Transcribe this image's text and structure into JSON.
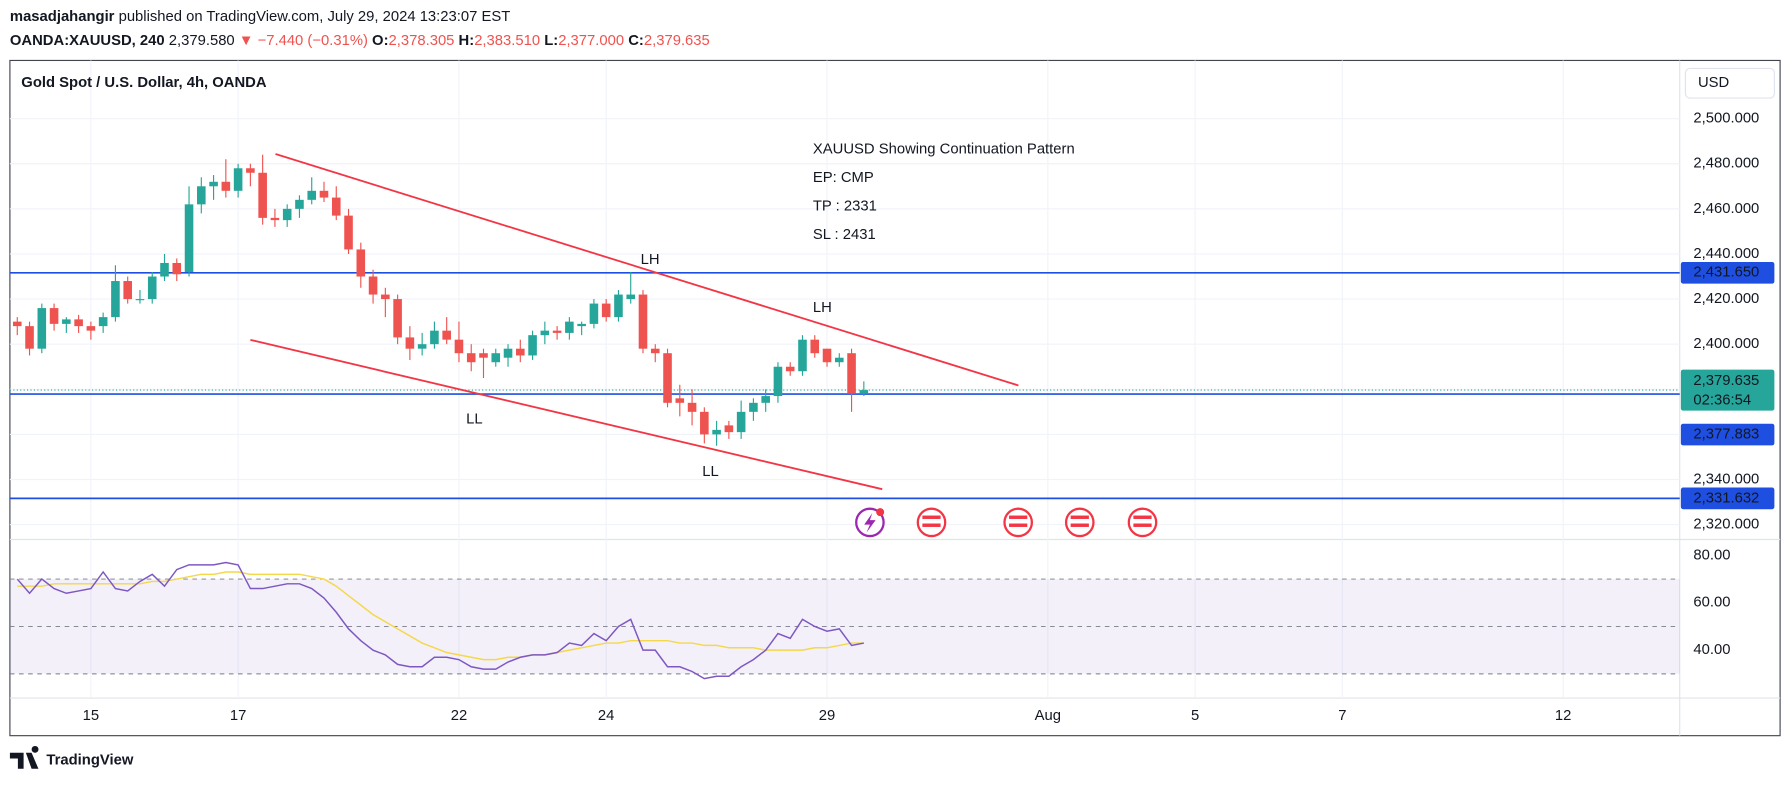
{
  "header": {
    "author": "masadjahangir",
    "published": "published on TradingView.com, July 29, 2024 13:23:07 EST",
    "symbol": "OANDA:XAUUSD, 240",
    "price": "2,379.580",
    "change": "▼ −7.440 (−0.31%)",
    "ohlc": [
      {
        "key": "O:",
        "value": "2,378.305"
      },
      {
        "key": "H:",
        "value": "2,383.510"
      },
      {
        "key": "L:",
        "value": "2,377.000"
      },
      {
        "key": "C:",
        "value": "2,379.635"
      }
    ],
    "legend": "Gold Spot / U.S. Dollar, 4h, OANDA",
    "currency": "USD",
    "brand": "TradingView"
  },
  "chart_data": {
    "type": "candlestick",
    "x": [
      0,
      1,
      2,
      3,
      4,
      5,
      6,
      7,
      8,
      9,
      10,
      11,
      12,
      13,
      14,
      15,
      16,
      17,
      18,
      19,
      20,
      21,
      22,
      23,
      24,
      25,
      26,
      27,
      28,
      29,
      30,
      31,
      32,
      33,
      34,
      35,
      36,
      37,
      38,
      39,
      40,
      41,
      42,
      43,
      44,
      45,
      46,
      47,
      48,
      49,
      50,
      51,
      52,
      53,
      54,
      55,
      56,
      57,
      58,
      59,
      60,
      61,
      62,
      63,
      64,
      65,
      66,
      67,
      68,
      69
    ],
    "open": [
      2410,
      2408,
      2398,
      2416,
      2409,
      2411,
      2408,
      2408,
      2412,
      2428,
      2420,
      2420,
      2430,
      2436,
      2432,
      2462,
      2470,
      2472,
      2468,
      2478,
      2476,
      2456,
      2455,
      2460,
      2464,
      2468,
      2465,
      2457,
      2442,
      2430,
      2422,
      2420,
      2403,
      2398,
      2400,
      2406,
      2402,
      2396,
      2396,
      2392,
      2394,
      2398,
      2395,
      2404,
      2406,
      2405,
      2408,
      2409,
      2418,
      2412,
      2420,
      2422,
      2398,
      2396,
      2376,
      2374,
      2370,
      2360,
      2364,
      2361,
      2370,
      2374,
      2377,
      2390,
      2388,
      2402,
      2398,
      2392,
      2396,
      2378.305
    ],
    "high": [
      2412,
      2410,
      2418,
      2418,
      2412,
      2413,
      2410,
      2414,
      2435,
      2430,
      2424,
      2432,
      2440,
      2438,
      2470,
      2474,
      2475,
      2482,
      2480,
      2480,
      2484,
      2460,
      2462,
      2466,
      2474,
      2472,
      2470,
      2460,
      2445,
      2433,
      2425,
      2422,
      2408,
      2405,
      2410,
      2412,
      2410,
      2400,
      2398,
      2398,
      2400,
      2402,
      2406,
      2410,
      2408,
      2412,
      2410,
      2420,
      2420,
      2424,
      2432,
      2424,
      2400,
      2398,
      2382,
      2380,
      2372,
      2366,
      2366,
      2375,
      2376,
      2380,
      2392,
      2392,
      2404,
      2404,
      2398,
      2396,
      2398,
      2383.51
    ],
    "low": [
      2404,
      2395,
      2396,
      2406,
      2405,
      2405,
      2402,
      2405,
      2410,
      2418,
      2418,
      2418,
      2428,
      2428,
      2430,
      2458,
      2464,
      2465,
      2465,
      2470,
      2453,
      2452,
      2452,
      2456,
      2462,
      2463,
      2455,
      2440,
      2425,
      2418,
      2412,
      2400,
      2393,
      2395,
      2398,
      2400,
      2392,
      2388,
      2385,
      2390,
      2390,
      2392,
      2393,
      2400,
      2402,
      2402,
      2404,
      2407,
      2410,
      2410,
      2418,
      2396,
      2392,
      2372,
      2368,
      2364,
      2356,
      2355,
      2358,
      2358,
      2366,
      2370,
      2374,
      2386,
      2386,
      2394,
      2390,
      2390,
      2370,
      2377
    ],
    "close": [
      2408,
      2398,
      2416,
      2409,
      2411,
      2408,
      2406,
      2412,
      2428,
      2420,
      2420,
      2430,
      2436,
      2431,
      2462,
      2470,
      2472,
      2468,
      2478,
      2476,
      2456,
      2455,
      2460,
      2464,
      2468,
      2465,
      2457,
      2442,
      2430,
      2422,
      2420,
      2403,
      2398,
      2400,
      2406,
      2402,
      2396,
      2392,
      2394,
      2396,
      2398,
      2395,
      2404,
      2406,
      2405,
      2410,
      2409,
      2418,
      2412,
      2422,
      2422,
      2398,
      2396,
      2374,
      2374,
      2370,
      2360,
      2362,
      2361,
      2370,
      2374,
      2377,
      2390,
      2388,
      2402,
      2396,
      2392,
      2394,
      2378,
      2379.635
    ],
    "up_color": "#26a69a",
    "down_color": "#ef5350",
    "xlim": [
      -0.6,
      135.5
    ],
    "xticks": [
      {
        "value": 6,
        "label": "15"
      },
      {
        "value": 18,
        "label": "17"
      },
      {
        "value": 36,
        "label": "22"
      },
      {
        "value": 48,
        "label": "24"
      },
      {
        "value": 66,
        "label": "29"
      },
      {
        "value": 84,
        "label": "Aug"
      },
      {
        "value": 96,
        "label": "5"
      },
      {
        "value": 108,
        "label": "7"
      },
      {
        "value": 126,
        "label": "12"
      }
    ],
    "ylim": [
      2313.4,
      2525.8
    ],
    "yticks": [
      {
        "value": 2320,
        "label": "2,320.000"
      },
      {
        "value": 2340,
        "label": "2,340.000"
      },
      {
        "value": 2360,
        "label": "2,360.000"
      },
      {
        "value": 2380,
        "label": "2,380.000"
      },
      {
        "value": 2400,
        "label": "2,400.000"
      },
      {
        "value": 2420,
        "label": "2,420.000"
      },
      {
        "value": 2440,
        "label": "2,440.000"
      },
      {
        "value": 2460,
        "label": "2,460.000"
      },
      {
        "value": 2480,
        "label": "2,480.000"
      },
      {
        "value": 2500,
        "label": "2,500.000"
      }
    ],
    "grid": true,
    "hlines": [
      {
        "value": 2431.65,
        "label": "2,431.650"
      },
      {
        "value": 2377.883,
        "label": "2,377.883"
      },
      {
        "value": 2331.632,
        "label": "2,331.632"
      }
    ],
    "hline_color": "#1e4fe0",
    "last": {
      "value": 2379.635,
      "label": "2,379.635",
      "countdown": "02:36:54"
    },
    "trendlines": [
      {
        "x": [
          21.05,
          81.6
        ],
        "y": [
          2484.3,
          2381.7
        ]
      },
      {
        "x": [
          19.0,
          70.5
        ],
        "y": [
          2401.9,
          2335.7
        ]
      }
    ],
    "trend_color": "#f23645",
    "annotation": [
      "XAUUSD Showing Continuation Pattern",
      "EP: CMP",
      "TP : 2331",
      "SL : 2431"
    ],
    "pivots": [
      {
        "text": "LH"
      },
      {
        "text": "LL"
      },
      {
        "text": "LH"
      },
      {
        "text": "LL"
      }
    ],
    "rsi": {
      "values": [
        70,
        64,
        70,
        66,
        64,
        65,
        66,
        73,
        66,
        65,
        69,
        72,
        67,
        74,
        76,
        76,
        76,
        77,
        76,
        66,
        66,
        67,
        68,
        68,
        66,
        62,
        56,
        49,
        44,
        40,
        38,
        34,
        33,
        33,
        37,
        37,
        36,
        33,
        32,
        32,
        35,
        37,
        38,
        38,
        39,
        43,
        42,
        47,
        44,
        50,
        53,
        40,
        40,
        33,
        33,
        31,
        28,
        29,
        29,
        33,
        36,
        40,
        47,
        45,
        53,
        50,
        48,
        49,
        42,
        43
      ],
      "ma": [
        67,
        67,
        67,
        68,
        68,
        68,
        68,
        68,
        68,
        68,
        68,
        69,
        69,
        70,
        71,
        72,
        72,
        73,
        73,
        72,
        72,
        72,
        72,
        72,
        71,
        70,
        67,
        63,
        59,
        55,
        52,
        49,
        46,
        43,
        41,
        39,
        38,
        37,
        36,
        36,
        37,
        37,
        38,
        38,
        39,
        40,
        41,
        42,
        43,
        43,
        44,
        44,
        44,
        44,
        43,
        43,
        42,
        42,
        41,
        41,
        41,
        40,
        40,
        40,
        40,
        41,
        41,
        42,
        43,
        43
      ],
      "color": "#7e57c2",
      "ma_color": "#f5d84a",
      "ylim": [
        19.8,
        86.7
      ],
      "yticks": [
        {
          "value": 40,
          "label": "40.00"
        },
        {
          "value": 60,
          "label": "60.00"
        },
        {
          "value": 80,
          "label": "80.00"
        }
      ],
      "levels": [
        30,
        50,
        70
      ]
    }
  }
}
